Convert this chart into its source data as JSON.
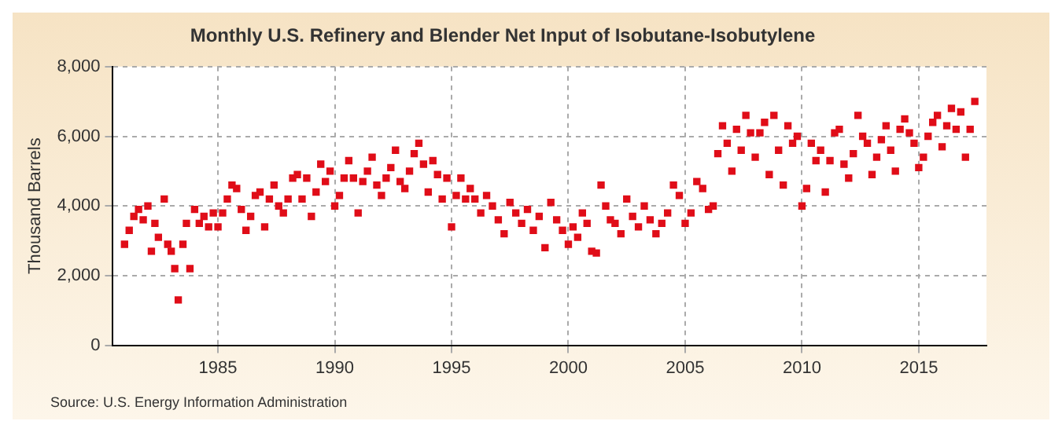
{
  "chart_data": {
    "type": "scatter",
    "title": "Monthly U.S. Refinery and Blender Net Input of Isobutane-Isobutylene",
    "ylabel": "Thousand Barrels",
    "annotations": [
      "Source: U.S. Energy Information Administration"
    ],
    "x": [
      1981.0,
      1981.2,
      1981.4,
      1981.6,
      1981.8,
      1982.0,
      1982.15,
      1982.3,
      1982.45,
      1982.7,
      1982.85,
      1983.0,
      1983.15,
      1983.3,
      1983.5,
      1983.65,
      1983.8,
      1984.0,
      1984.2,
      1984.4,
      1984.6,
      1984.8,
      1985.0,
      1985.2,
      1985.4,
      1985.6,
      1985.8,
      1986.0,
      1986.2,
      1986.4,
      1986.6,
      1986.8,
      1987.0,
      1987.2,
      1987.4,
      1987.6,
      1987.8,
      1988.0,
      1988.2,
      1988.4,
      1988.6,
      1988.8,
      1989.0,
      1989.2,
      1989.4,
      1989.6,
      1989.8,
      1990.0,
      1990.2,
      1990.4,
      1990.6,
      1990.8,
      1991.0,
      1991.2,
      1991.4,
      1991.6,
      1991.8,
      1992.0,
      1992.2,
      1992.4,
      1992.6,
      1992.8,
      1993.0,
      1993.2,
      1993.4,
      1993.6,
      1993.8,
      1994.0,
      1994.2,
      1994.4,
      1994.6,
      1994.8,
      1995.0,
      1995.2,
      1995.4,
      1995.6,
      1995.8,
      1996.0,
      1996.25,
      1996.5,
      1996.75,
      1997.0,
      1997.25,
      1997.5,
      1997.75,
      1998.0,
      1998.25,
      1998.5,
      1998.75,
      1999.0,
      1999.25,
      1999.5,
      1999.75,
      2000.0,
      2000.2,
      2000.4,
      2000.6,
      2000.8,
      2001.0,
      2001.2,
      2001.4,
      2001.6,
      2001.8,
      2002.0,
      2002.25,
      2002.5,
      2002.75,
      2003.0,
      2003.25,
      2003.5,
      2003.75,
      2004.0,
      2004.25,
      2004.5,
      2004.75,
      2005.0,
      2005.25,
      2005.5,
      2005.75,
      2006.0,
      2006.2,
      2006.4,
      2006.6,
      2006.8,
      2007.0,
      2007.2,
      2007.4,
      2007.6,
      2007.8,
      2008.0,
      2008.2,
      2008.4,
      2008.6,
      2008.8,
      2009.0,
      2009.2,
      2009.4,
      2009.6,
      2009.8,
      2010.0,
      2010.2,
      2010.4,
      2010.6,
      2010.8,
      2011.0,
      2011.2,
      2011.4,
      2011.6,
      2011.8,
      2012.0,
      2012.2,
      2012.4,
      2012.6,
      2012.8,
      2013.0,
      2013.2,
      2013.4,
      2013.6,
      2013.8,
      2014.0,
      2014.2,
      2014.4,
      2014.6,
      2014.8,
      2015.0,
      2015.2,
      2015.4,
      2015.6,
      2015.8,
      2016.0,
      2016.2,
      2016.4,
      2016.6,
      2016.8,
      2017.0,
      2017.2,
      2017.4
    ],
    "series": [
      {
        "color": "#e00d18",
        "values": [
          2900,
          3300,
          3700,
          3900,
          3600,
          4000,
          2700,
          3500,
          3100,
          4200,
          2900,
          2700,
          2200,
          1300,
          2900,
          3500,
          2200,
          3900,
          3500,
          3700,
          3400,
          3800,
          3400,
          3800,
          4200,
          4600,
          4500,
          3900,
          3300,
          3700,
          4300,
          4400,
          3400,
          4200,
          4600,
          4000,
          3800,
          4200,
          4800,
          4900,
          4200,
          4800,
          3700,
          4400,
          5200,
          4700,
          5000,
          4000,
          4300,
          4800,
          5300,
          4800,
          3800,
          4700,
          5000,
          5400,
          4600,
          4300,
          4800,
          5100,
          5600,
          4700,
          4500,
          5000,
          5500,
          5800,
          5200,
          4400,
          5300,
          4900,
          4200,
          4800,
          3400,
          4300,
          4800,
          4200,
          4500,
          4200,
          3800,
          4300,
          4000,
          3600,
          3200,
          4100,
          3800,
          3500,
          3900,
          3300,
          3700,
          2800,
          4100,
          3600,
          3300,
          2900,
          3400,
          3100,
          3800,
          3500,
          2700,
          2650,
          4600,
          4000,
          3600,
          3500,
          3200,
          4200,
          3700,
          3400,
          4000,
          3600,
          3200,
          3500,
          3800,
          4600,
          4300,
          3500,
          3800,
          4700,
          4500,
          3900,
          4000,
          5500,
          6300,
          5800,
          5000,
          6200,
          5600,
          6600,
          6100,
          5400,
          6100,
          6400,
          4900,
          6600,
          5600,
          4600,
          6300,
          5800,
          6000,
          4000,
          4500,
          5800,
          5300,
          5600,
          4400,
          5300,
          6100,
          6200,
          5200,
          4800,
          5500,
          6600,
          6000,
          5800,
          4900,
          5400,
          5900,
          6300,
          5600,
          5000,
          6200,
          6500,
          6100,
          5800,
          5100,
          5400,
          6000,
          6400,
          6600,
          5700,
          6300,
          6800,
          6200,
          6700,
          5400,
          6200,
          7000
        ]
      }
    ],
    "xlim": [
      1980.5,
      2017.9
    ],
    "xticks": [
      1985,
      1990,
      1995,
      2000,
      2005,
      2010,
      2015
    ],
    "ylim": [
      0,
      8000
    ],
    "yticks": [
      0,
      {
        "value": 2000,
        "label": "2,000"
      },
      {
        "value": 4000,
        "label": "4,000"
      },
      {
        "value": 6000,
        "label": "6,000"
      },
      {
        "value": 8000,
        "label": "8,000"
      }
    ],
    "grid": true,
    "legend": false,
    "marker": "square"
  }
}
